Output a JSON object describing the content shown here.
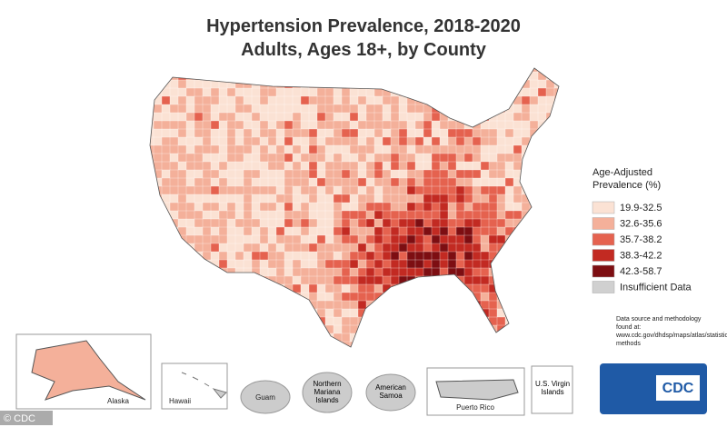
{
  "title": "Hypertension Prevalence, 2018-2020",
  "subtitle": "Adults, Ages 18+, by County",
  "legend": {
    "title": "Age-Adjusted Prevalence (%)",
    "items": [
      {
        "label": "19.9-32.5",
        "color": "#fbe2d4"
      },
      {
        "label": "32.6-35.6",
        "color": "#f4b09a"
      },
      {
        "label": "35.7-38.2",
        "color": "#e5624f"
      },
      {
        "label": "38.3-42.2",
        "color": "#c22a22"
      },
      {
        "label": "42.3-58.7",
        "color": "#7d0e12"
      },
      {
        "label": "Insufficient Data",
        "color": "#d0d0d0"
      }
    ]
  },
  "insets": [
    "Alaska",
    "Hawaii",
    "Guam",
    "Northern Mariana Islands",
    "American Samoa",
    "Puerto Rico",
    "U.S. Virgin Islands"
  ],
  "source": "Data source and methodology found at: www.cdc.gov/dhdsp/maps/atlas/statistical methods",
  "logo": "CDC",
  "watermark": "© CDC"
}
